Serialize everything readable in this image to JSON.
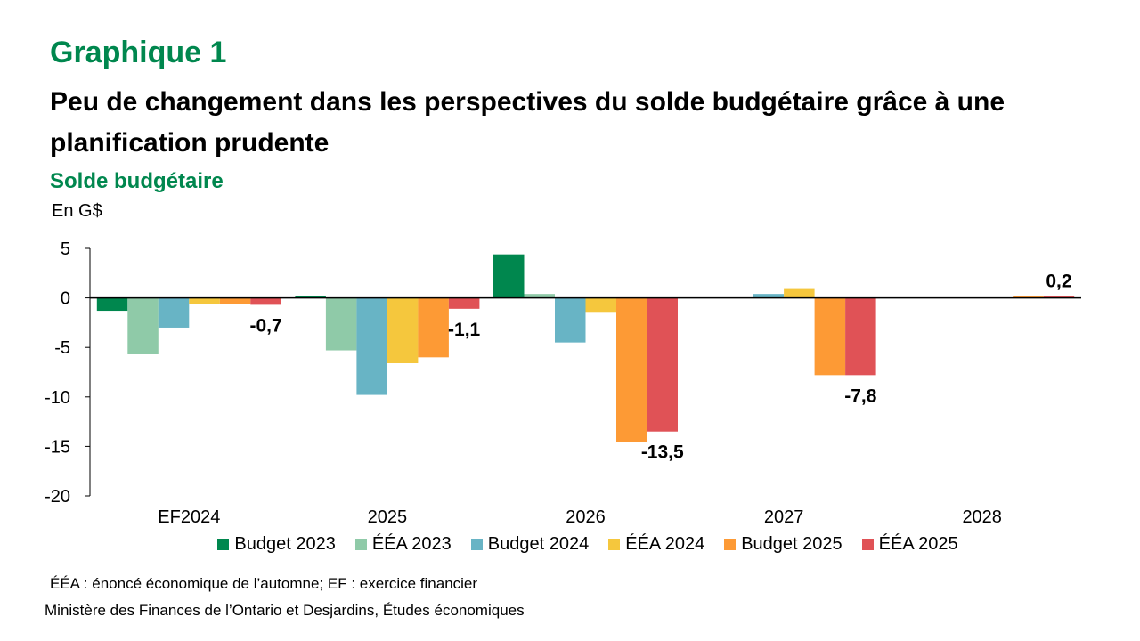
{
  "header": {
    "label": "Graphique 1",
    "title": "Peu de changement dans les perspectives du solde budgétaire grâce à une planification prudente",
    "subtitle": "Solde budgétaire",
    "unit": "En G$"
  },
  "footer": {
    "note": "ÉÉA : énoncé économique de l’automne; EF : exercice financier",
    "source": "Ministère des Finances de l’Ontario et Desjardins, Études économiques"
  },
  "chart_data": {
    "type": "bar",
    "title": "Solde budgétaire",
    "ylabel": "En G$",
    "xlabel": "",
    "ylim": [
      -20,
      5
    ],
    "yticks": [
      5,
      0,
      -5,
      -10,
      -15,
      -20
    ],
    "grid": false,
    "legend_position": "bottom",
    "categories": [
      "EF2024",
      "2025",
      "2026",
      "2027",
      "2028"
    ],
    "series": [
      {
        "name": "Budget 2023",
        "color": "#00874e",
        "values": [
          -1.3,
          0.2,
          4.4,
          null,
          null
        ]
      },
      {
        "name": "ÉÉA 2023",
        "color": "#8fcaa8",
        "values": [
          -5.7,
          -5.3,
          0.4,
          null,
          null
        ]
      },
      {
        "name": "Budget 2024",
        "color": "#68b4c5",
        "values": [
          -3.0,
          -9.8,
          -4.5,
          0.4,
          null
        ]
      },
      {
        "name": "ÉÉA 2024",
        "color": "#f5c73d",
        "values": [
          -0.6,
          -6.6,
          -1.5,
          0.9,
          null
        ]
      },
      {
        "name": "Budget 2025",
        "color": "#fd9a35",
        "values": [
          -0.6,
          -6.0,
          -14.6,
          -7.8,
          0.2
        ]
      },
      {
        "name": "ÉÉA 2025",
        "color": "#e05256",
        "values": [
          -0.7,
          -1.1,
          -13.5,
          -7.8,
          0.2
        ]
      }
    ],
    "data_labels": [
      {
        "series": "ÉÉA 2025",
        "category": "EF2024",
        "text": "-0,7"
      },
      {
        "series": "ÉÉA 2025",
        "category": "2025",
        "text": "-1,1"
      },
      {
        "series": "ÉÉA 2025",
        "category": "2026",
        "text": "-13,5"
      },
      {
        "series": "ÉÉA 2025",
        "category": "2027",
        "text": "-7,8"
      },
      {
        "series": "ÉÉA 2025",
        "category": "2028",
        "text": "0,2"
      }
    ]
  }
}
